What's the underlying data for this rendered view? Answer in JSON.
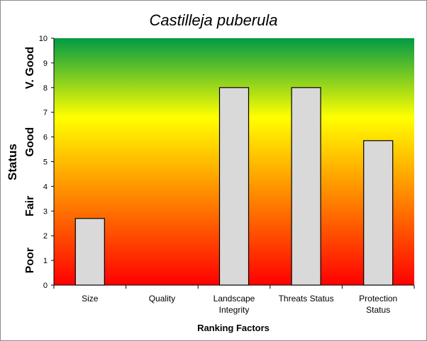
{
  "chart_data": {
    "type": "bar",
    "title": "Castilleja puberula",
    "xlabel": "Ranking Factors",
    "ylabel": "Status",
    "ylim": [
      0,
      10
    ],
    "yticks": [
      0,
      1,
      2,
      3,
      4,
      5,
      6,
      7,
      8,
      9,
      10
    ],
    "grid": false,
    "legend": "none",
    "categories": [
      "Size",
      "Quality",
      "Landscape Integrity",
      "Threats Status",
      "Protection Status"
    ],
    "category_lines": [
      [
        "Size"
      ],
      [
        "Quality"
      ],
      [
        "Landscape",
        "Integrity"
      ],
      [
        "Threats Status"
      ],
      [
        "Protection",
        "Status"
      ]
    ],
    "values": [
      2.7,
      0,
      8.0,
      8.0,
      5.85
    ],
    "status_bands": [
      {
        "label": "Poor",
        "center": 1
      },
      {
        "label": "Fair",
        "center": 3.2
      },
      {
        "label": "Good",
        "center": 5.8
      },
      {
        "label": "V. Good",
        "center": 8.8
      }
    ],
    "colors": {
      "bar_fill": "#d9d9d9",
      "bar_stroke": "#000000",
      "gradient_bottom": "#ff0000",
      "gradient_low": "#ff6a00",
      "gradient_mid": "#ffff00",
      "gradient_top": "#009a44"
    }
  }
}
